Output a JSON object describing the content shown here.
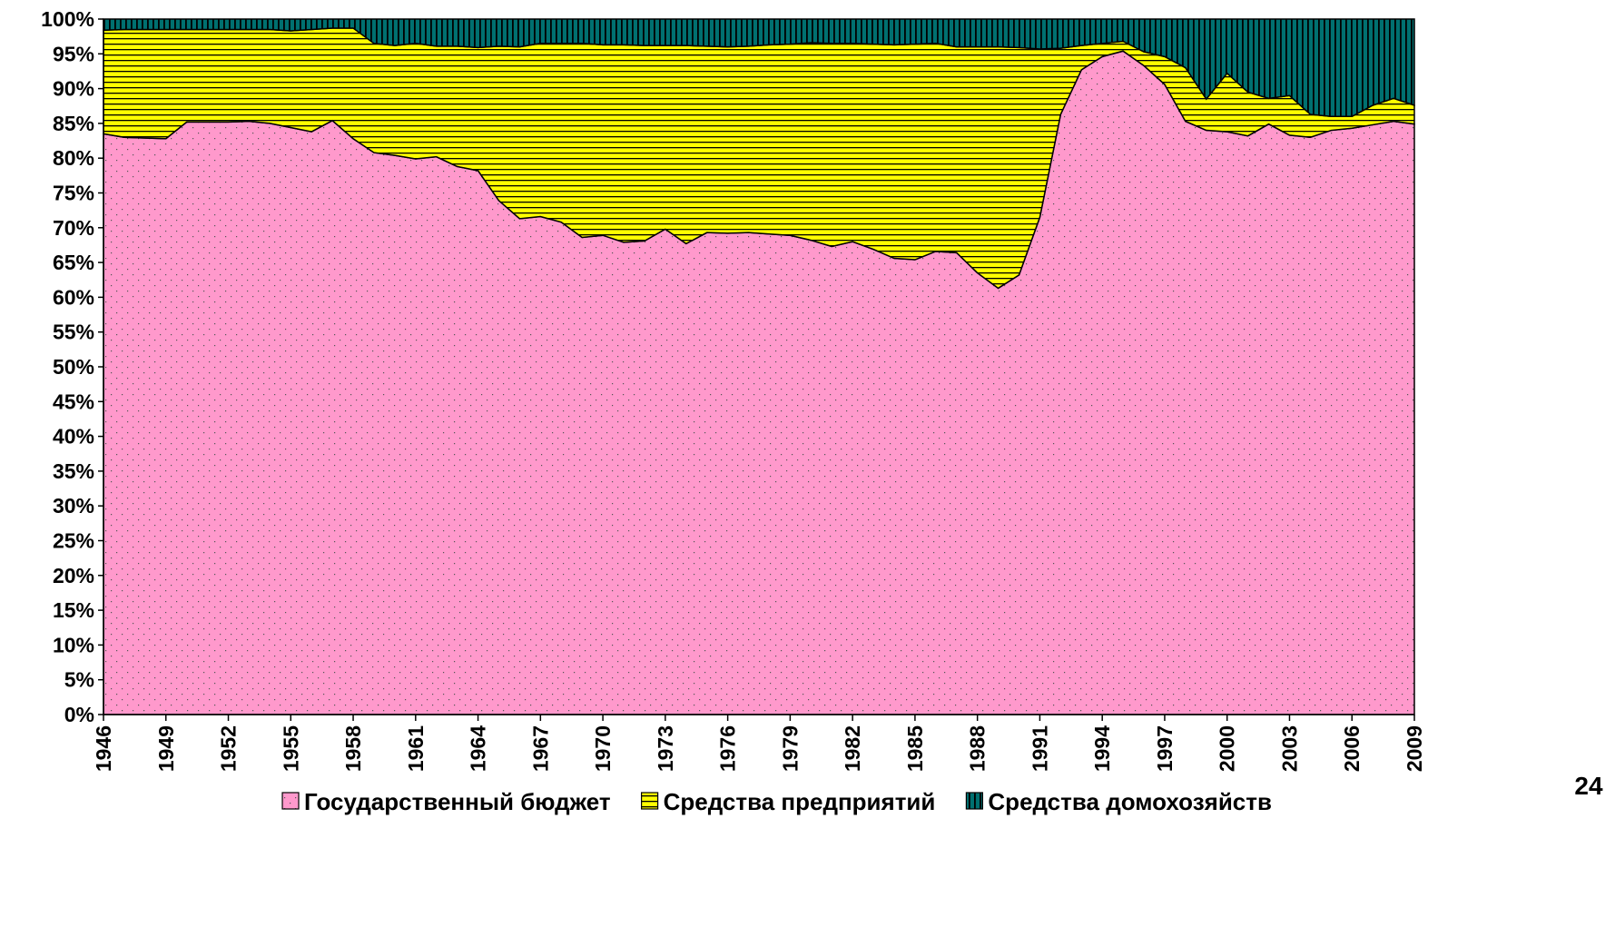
{
  "chart_data": {
    "type": "stacked_area_100",
    "x": [
      1946,
      1947,
      1948,
      1949,
      1950,
      1951,
      1952,
      1953,
      1954,
      1955,
      1956,
      1957,
      1958,
      1959,
      1960,
      1961,
      1962,
      1963,
      1964,
      1965,
      1966,
      1967,
      1968,
      1969,
      1970,
      1971,
      1972,
      1973,
      1974,
      1975,
      1976,
      1977,
      1978,
      1979,
      1980,
      1981,
      1982,
      1983,
      1984,
      1985,
      1986,
      1987,
      1988,
      1989,
      1990,
      1991,
      1992,
      1993,
      1994,
      1995,
      1996,
      1997,
      1998,
      1999,
      2000,
      2001,
      2002,
      2003,
      2004,
      2005,
      2006,
      2007,
      2008,
      2009
    ],
    "xlim": [
      1946,
      2009
    ],
    "xticks": [
      1946,
      1949,
      1952,
      1955,
      1958,
      1961,
      1964,
      1967,
      1970,
      1973,
      1976,
      1979,
      1982,
      1985,
      1988,
      1991,
      1994,
      1997,
      2000,
      2003,
      2006,
      2009
    ],
    "ylim": [
      0,
      100
    ],
    "yticks": [
      {
        "value": 0,
        "label": "0%"
      },
      {
        "value": 5,
        "label": "5%"
      },
      {
        "value": 10,
        "label": "10%"
      },
      {
        "value": 15,
        "label": "15%"
      },
      {
        "value": 20,
        "label": "20%"
      },
      {
        "value": 25,
        "label": "25%"
      },
      {
        "value": 30,
        "label": "30%"
      },
      {
        "value": 35,
        "label": "35%"
      },
      {
        "value": 40,
        "label": "40%"
      },
      {
        "value": 45,
        "label": "45%"
      },
      {
        "value": 50,
        "label": "50%"
      },
      {
        "value": 55,
        "label": "55%"
      },
      {
        "value": 60,
        "label": "60%"
      },
      {
        "value": 65,
        "label": "65%"
      },
      {
        "value": 70,
        "label": "70%"
      },
      {
        "value": 75,
        "label": "75%"
      },
      {
        "value": 80,
        "label": "80%"
      },
      {
        "value": 85,
        "label": "85%"
      },
      {
        "value": 90,
        "label": "90%"
      },
      {
        "value": 95,
        "label": "95%"
      },
      {
        "value": 100,
        "label": "100%"
      }
    ],
    "legend": "bottom",
    "series": [
      {
        "name": "Государственный бюджет",
        "color": "#ff99cc",
        "pattern": "dots",
        "values": [
          83.5,
          83.0,
          82.9,
          82.8,
          85.2,
          85.2,
          85.2,
          85.3,
          85.0,
          84.4,
          83.8,
          85.4,
          82.8,
          80.8,
          80.4,
          79.9,
          80.2,
          78.8,
          78.2,
          73.9,
          71.3,
          71.6,
          70.8,
          68.6,
          68.9,
          67.9,
          68.1,
          69.8,
          67.7,
          69.3,
          69.2,
          69.3,
          69.1,
          68.9,
          68.2,
          67.3,
          68.0,
          66.9,
          65.6,
          65.4,
          66.6,
          66.4,
          63.5,
          61.3,
          63.2,
          71.5,
          86.3,
          92.7,
          94.6,
          95.4,
          93.3,
          90.6,
          85.3,
          84.0,
          83.8,
          83.2,
          84.9,
          83.3,
          83.0,
          84.0,
          84.3,
          84.8,
          85.3,
          84.9
        ]
      },
      {
        "name": "Средства предприятий",
        "color": "#ffff00",
        "pattern": "horizontal",
        "values": [
          14.9,
          15.5,
          15.6,
          15.7,
          13.3,
          13.3,
          13.3,
          13.2,
          13.5,
          13.9,
          14.7,
          13.3,
          15.9,
          15.7,
          15.8,
          16.6,
          15.9,
          17.3,
          17.7,
          22.2,
          24.7,
          24.9,
          25.7,
          27.9,
          27.4,
          28.4,
          28.1,
          26.4,
          28.5,
          26.8,
          26.8,
          26.8,
          27.2,
          27.5,
          28.4,
          29.2,
          28.5,
          29.5,
          30.7,
          31.0,
          29.9,
          29.6,
          32.5,
          34.7,
          32.7,
          24.2,
          9.5,
          3.5,
          1.9,
          1.4,
          2.0,
          4.0,
          7.7,
          4.5,
          8.4,
          6.3,
          3.7,
          5.7,
          3.3,
          2.0,
          1.7,
          2.8,
          3.3,
          2.7
        ]
      },
      {
        "name": "Средства домохозяйств",
        "color": "#007070",
        "pattern": "vertical",
        "values": [
          1.6,
          1.5,
          1.5,
          1.5,
          1.5,
          1.5,
          1.5,
          1.5,
          1.5,
          1.7,
          1.5,
          1.3,
          1.3,
          3.5,
          3.8,
          3.5,
          3.9,
          3.9,
          4.1,
          3.9,
          4.0,
          3.5,
          3.5,
          3.5,
          3.7,
          3.7,
          3.8,
          3.8,
          3.8,
          3.9,
          4.0,
          3.9,
          3.7,
          3.6,
          3.4,
          3.5,
          3.5,
          3.6,
          3.7,
          3.6,
          3.5,
          4.0,
          4.0,
          4.0,
          4.1,
          4.3,
          4.2,
          3.8,
          3.5,
          3.2,
          4.7,
          5.4,
          7.0,
          11.5,
          7.8,
          10.5,
          11.4,
          11.0,
          13.7,
          14.0,
          14.0,
          12.4,
          11.4,
          12.4
        ]
      }
    ],
    "page_number": "24"
  }
}
